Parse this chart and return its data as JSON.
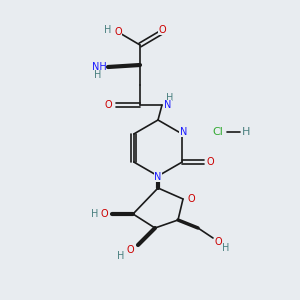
{
  "background_color": "#e8ecf0",
  "figsize": [
    3.0,
    3.0
  ],
  "dpi": 100,
  "bond_color": "#1a1a1a",
  "bond_lw": 1.2,
  "colors": {
    "C": "#1a1a1a",
    "O": "#cc0000",
    "N": "#1a1aff",
    "H": "#4a8080",
    "Cl": "#33aa33"
  },
  "fs": 7.0
}
